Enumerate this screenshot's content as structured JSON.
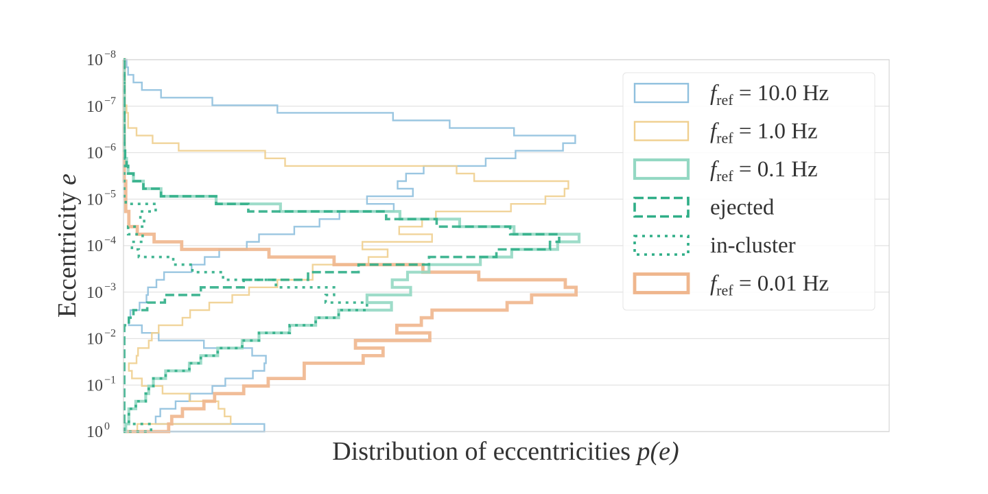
{
  "chart_data": {
    "type": "histogram",
    "orientation": "horizontal",
    "xlabel_main": "Distribution of eccentricities ",
    "xlabel_math": "p(e)",
    "ylabel_main": "Eccentricity ",
    "ylabel_math": "e",
    "y_scale": "log",
    "y_inverted": true,
    "ylim": [
      1e-08,
      1
    ],
    "xlim": [
      0,
      1
    ],
    "x_ticks_shown": false,
    "grid": "horizontal",
    "legend_placement": "top-right",
    "y_ticks": [
      {
        "value": -8,
        "base": "10",
        "exp": "−8"
      },
      {
        "value": -7,
        "base": "10",
        "exp": "−7"
      },
      {
        "value": -6,
        "base": "10",
        "exp": "−6"
      },
      {
        "value": -5,
        "base": "10",
        "exp": "−5"
      },
      {
        "value": -4,
        "base": "10",
        "exp": "−4"
      },
      {
        "value": -3,
        "base": "10",
        "exp": "−3"
      },
      {
        "value": -2,
        "base": "10",
        "exp": "−2"
      },
      {
        "value": -1,
        "base": "10",
        "exp": "−1"
      },
      {
        "value": 0,
        "base": "10",
        "exp": "0"
      }
    ],
    "bins": {
      "log10_e_min": -8,
      "log10_e_max": 0,
      "count": 49
    },
    "series": [
      {
        "name_f": "f",
        "name_sub": "ref",
        "name_rest": " = 10.0 Hz",
        "color": "#8fc0de",
        "style": "solid-thin",
        "density": [
          0.004,
          0.006,
          0.013,
          0.024,
          0.049,
          0.116,
          0.201,
          0.352,
          0.426,
          0.51,
          0.59,
          0.574,
          0.512,
          0.473,
          0.392,
          0.369,
          0.358,
          0.378,
          0.318,
          0.353,
          0.282,
          0.256,
          0.223,
          0.177,
          0.161,
          0.125,
          0.106,
          0.089,
          0.053,
          0.043,
          0.032,
          0.03,
          0.021,
          0.009,
          0.007,
          0.024,
          0.046,
          0.105,
          0.168,
          0.186,
          0.184,
          0.169,
          0.133,
          0.116,
          0.087,
          0.068,
          0.048,
          0.042,
          0.184
        ]
      },
      {
        "name_f": "f",
        "name_sub": "ref",
        "name_rest": " = 1.0 Hz",
        "color": "#f0cf8f",
        "style": "solid-thin",
        "density": [
          0.001,
          0.001,
          0.001,
          0.001,
          0.001,
          0.001,
          0.004,
          0.006,
          0.006,
          0.017,
          0.038,
          0.072,
          0.185,
          0.211,
          0.435,
          0.458,
          0.581,
          0.576,
          0.551,
          0.506,
          0.408,
          0.39,
          0.36,
          0.403,
          0.312,
          0.345,
          0.32,
          0.247,
          0.247,
          0.201,
          0.164,
          0.142,
          0.112,
          0.087,
          0.077,
          0.046,
          0.037,
          0.033,
          0.019,
          0.017,
          0.007,
          0.011,
          0.024,
          0.051,
          0.086,
          0.124,
          0.132,
          0.14,
          0.018
        ]
      },
      {
        "name_f": "f",
        "name_sub": "ref",
        "name_rest": " = 0.1 Hz",
        "color": "#94d8c3",
        "style": "solid-thick",
        "density": [
          0.001,
          0.001,
          0.001,
          0.001,
          0.001,
          0.001,
          0.001,
          0.001,
          0.001,
          0.001,
          0.001,
          0.001,
          0.002,
          0.004,
          0.006,
          0.013,
          0.026,
          0.049,
          0.121,
          0.205,
          0.361,
          0.439,
          0.51,
          0.595,
          0.567,
          0.507,
          0.466,
          0.399,
          0.371,
          0.351,
          0.375,
          0.318,
          0.35,
          0.281,
          0.251,
          0.217,
          0.177,
          0.155,
          0.123,
          0.101,
          0.086,
          0.055,
          0.039,
          0.033,
          0.029,
          0.016,
          0.007,
          0.007,
          0.003
        ]
      },
      {
        "name": "ejected",
        "color": "#2fae87",
        "style": "dashed",
        "density": [
          0.001,
          0.001,
          0.001,
          0.001,
          0.001,
          0.001,
          0.001,
          0.001,
          0.001,
          0.001,
          0.001,
          0.001,
          0.002,
          0.004,
          0.006,
          0.013,
          0.026,
          0.049,
          0.121,
          0.163,
          0.343,
          0.409,
          0.505,
          0.569,
          0.557,
          0.487,
          0.399,
          0.307,
          0.241,
          0.157,
          0.101,
          0.054,
          0.031,
          0.013,
          0.007,
          0.001,
          0.001,
          0.001,
          0.001,
          0.001,
          0.001,
          0.001,
          0.001,
          0.001,
          0.001,
          0.001,
          0.001,
          0.001,
          0.001
        ]
      },
      {
        "name": "in-cluster",
        "color": "#2fae87",
        "style": "dotted",
        "density": [
          0.001,
          0.001,
          0.001,
          0.001,
          0.001,
          0.001,
          0.001,
          0.001,
          0.001,
          0.001,
          0.001,
          0.001,
          0.001,
          0.001,
          0.001,
          0.001,
          0.001,
          0.001,
          0.003,
          0.042,
          0.022,
          0.027,
          0.006,
          0.025,
          0.011,
          0.02,
          0.065,
          0.09,
          0.13,
          0.199,
          0.275,
          0.264,
          0.318,
          0.281,
          0.251,
          0.217,
          0.177,
          0.155,
          0.123,
          0.101,
          0.086,
          0.055,
          0.039,
          0.033,
          0.029,
          0.016,
          0.007,
          0.007,
          0.036
        ]
      },
      {
        "name_f": "f",
        "name_sub": "ref",
        "name_rest": " = 0.01 Hz",
        "color": "#efb68d",
        "style": "solid-thicker",
        "density": [
          0.001,
          0.001,
          0.001,
          0.001,
          0.001,
          0.001,
          0.001,
          0.001,
          0.001,
          0.001,
          0.001,
          0.001,
          0.001,
          0.001,
          0.001,
          0.001,
          0.003,
          0.003,
          0.003,
          0.003,
          0.007,
          0.007,
          0.018,
          0.04,
          0.076,
          0.19,
          0.275,
          0.391,
          0.464,
          0.577,
          0.591,
          0.533,
          0.501,
          0.403,
          0.389,
          0.357,
          0.4,
          0.303,
          0.339,
          0.313,
          0.236,
          0.236,
          0.189,
          0.157,
          0.119,
          0.105,
          0.077,
          0.063,
          0.059
        ]
      }
    ]
  }
}
